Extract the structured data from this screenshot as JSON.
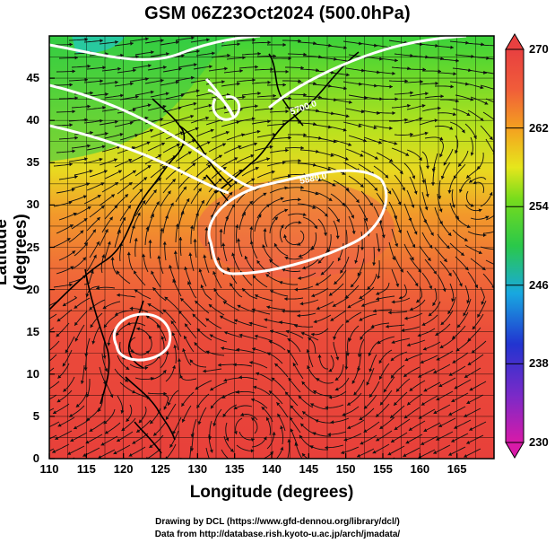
{
  "title": "GSM 06Z23Oct2024 (500.0hPa)",
  "axes": {
    "xlabel": "Longitude (degrees)",
    "ylabel": "Latitude  (degrees)",
    "xticks": [
      "110",
      "115",
      "120",
      "125",
      "130",
      "135",
      "140",
      "145",
      "150",
      "155",
      "160",
      "165"
    ],
    "yticks": [
      "0",
      "5",
      "10",
      "15",
      "20",
      "25",
      "30",
      "35",
      "40",
      "45"
    ],
    "xlim": [
      110,
      170
    ],
    "ylim": [
      0,
      50
    ]
  },
  "colorbar": {
    "ticks": [
      "270",
      "262",
      "254",
      "246",
      "238",
      "230"
    ],
    "range": [
      230,
      270
    ],
    "colors": [
      "#d61ab0",
      "#2030d0",
      "#1aa6e0",
      "#28c84a",
      "#7ade1a",
      "#e8e61c",
      "#f4a020",
      "#f05a3a",
      "#e84040"
    ]
  },
  "contour_labels": [
    "5700.0",
    "5880.0"
  ],
  "credits": {
    "line1": "Drawing by DCL (https://www.gfd-dennou.org/library/dcl/)",
    "line2": "Data from http://database.rish.kyoto-u.ac.jp/arch/jmadata/"
  }
}
